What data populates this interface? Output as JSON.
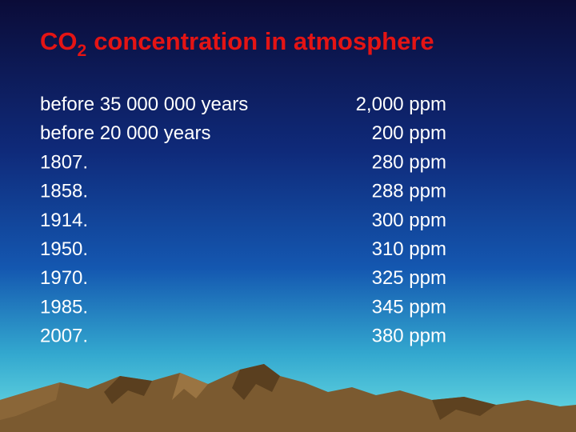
{
  "header": {
    "title": {
      "prefix": "CO",
      "subscript": "2",
      "rest": "concentration in atmosphere"
    }
  },
  "table": {
    "rows": [
      [
        "before 35 000 000 years",
        "2,000 ppm"
      ],
      [
        "before 20 000 years",
        "200 ppm"
      ],
      [
        "1807.",
        "280 ppm"
      ],
      [
        "1858.",
        "288 ppm"
      ],
      [
        "1914.",
        "300 ppm"
      ],
      [
        "1950.",
        "310 ppm"
      ],
      [
        "1970.",
        "325 ppm"
      ],
      [
        "1985.",
        "345 ppm"
      ],
      [
        "2007.",
        "380 ppm"
      ]
    ]
  }
}
